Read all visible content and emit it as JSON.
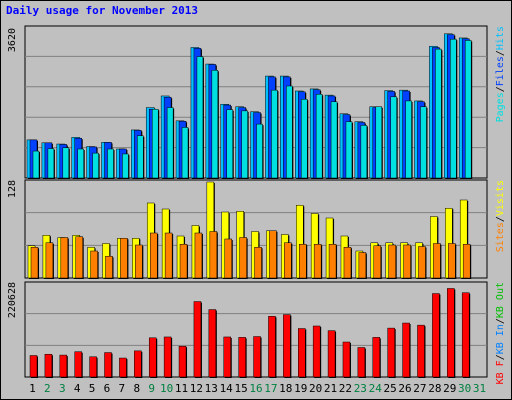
{
  "title": "Daily usage for November 2013",
  "colors": {
    "hits": "#00c0ff",
    "files": "#0040ff",
    "pages": "#00e0e0",
    "visits": "#ffff00",
    "sites": "#ff8000",
    "kbf": "#ff0000",
    "kbin": "#0080ff",
    "kbout": "#00c000",
    "panel": "#c0c0c0",
    "grid": "#808080",
    "title": "#0000ff",
    "weekend_day": "#008040",
    "weekday": "#000000"
  },
  "panels": {
    "top": {
      "max_label": "3620",
      "legend": [
        "Pages",
        "Files",
        "Hits"
      ]
    },
    "mid": {
      "max_label": "128",
      "legend": [
        "Sites",
        "Visits"
      ]
    },
    "bottom": {
      "max_label": "220628",
      "legend": [
        "KB F",
        "KB In",
        "KB Out"
      ]
    }
  },
  "chart_data": [
    {
      "type": "bar",
      "panel": "hits-files-pages",
      "categories": [
        "1",
        "2",
        "3",
        "4",
        "5",
        "6",
        "7",
        "8",
        "9",
        "10",
        "11",
        "12",
        "13",
        "14",
        "15",
        "16",
        "17",
        "18",
        "19",
        "20",
        "21",
        "22",
        "23",
        "24",
        "25",
        "26",
        "27",
        "28",
        "29",
        "30",
        "31"
      ],
      "ylim": [
        0,
        3620
      ],
      "series": [
        {
          "name": "Hits",
          "values": [
            920,
            850,
            820,
            980,
            760,
            860,
            700,
            1160,
            1700,
            1980,
            1380,
            3150,
            2750,
            1780,
            1720,
            1600,
            2460,
            2460,
            2100,
            2150,
            2000,
            1550,
            1360,
            1720,
            2110,
            2120,
            1860,
            3180,
            3480,
            3380,
            null
          ]
        },
        {
          "name": "Files",
          "values": [
            920,
            850,
            810,
            960,
            750,
            860,
            700,
            1150,
            1660,
            1950,
            1370,
            3130,
            2740,
            1760,
            1700,
            1580,
            2440,
            2440,
            2080,
            2130,
            1980,
            1530,
            1340,
            1700,
            2090,
            2100,
            1840,
            3150,
            3460,
            3360,
            null
          ]
        },
        {
          "name": "Pages",
          "values": [
            650,
            710,
            730,
            700,
            600,
            700,
            580,
            1020,
            1660,
            1700,
            1220,
            2930,
            2600,
            1650,
            1620,
            1300,
            2120,
            2220,
            1900,
            2020,
            1840,
            1360,
            1270,
            1720,
            1960,
            1860,
            1720,
            3110,
            3350,
            3320,
            null
          ]
        }
      ]
    },
    {
      "type": "bar",
      "panel": "visits-sites",
      "categories": [
        "1",
        "2",
        "3",
        "4",
        "5",
        "6",
        "7",
        "8",
        "9",
        "10",
        "11",
        "12",
        "13",
        "14",
        "15",
        "16",
        "17",
        "18",
        "19",
        "20",
        "21",
        "22",
        "23",
        "24",
        "25",
        "26",
        "27",
        "28",
        "29",
        "30",
        "31"
      ],
      "ylim": [
        0,
        128
      ],
      "series": [
        {
          "name": "Visits",
          "values": [
            43,
            57,
            54,
            57,
            41,
            46,
            53,
            53,
            100,
            92,
            56,
            70,
            128,
            88,
            89,
            62,
            63,
            58,
            97,
            86,
            80,
            56,
            36,
            47,
            47,
            47,
            47,
            82,
            93,
            104,
            null
          ]
        },
        {
          "name": "Sites",
          "values": [
            41,
            47,
            54,
            55,
            36,
            29,
            53,
            44,
            60,
            60,
            45,
            60,
            62,
            52,
            54,
            41,
            63,
            47,
            45,
            45,
            45,
            41,
            34,
            43,
            44,
            44,
            42,
            46,
            46,
            45,
            null
          ]
        }
      ]
    },
    {
      "type": "bar",
      "panel": "kbytes",
      "categories": [
        "1",
        "2",
        "3",
        "4",
        "5",
        "6",
        "7",
        "8",
        "9",
        "10",
        "11",
        "12",
        "13",
        "14",
        "15",
        "16",
        "17",
        "18",
        "19",
        "20",
        "21",
        "22",
        "23",
        "24",
        "25",
        "26",
        "27",
        "28",
        "29",
        "30",
        "31"
      ],
      "ylim": [
        0,
        220628
      ],
      "series": [
        {
          "name": "KB F",
          "values": [
            51000,
            54000,
            52000,
            60000,
            48000,
            58000,
            45000,
            62000,
            93000,
            95000,
            73000,
            179000,
            160000,
            95000,
            94000,
            96000,
            144000,
            148000,
            115000,
            121000,
            110000,
            83000,
            70000,
            94000,
            116000,
            128000,
            123000,
            198000,
            210000,
            200000,
            null
          ]
        }
      ]
    }
  ]
}
